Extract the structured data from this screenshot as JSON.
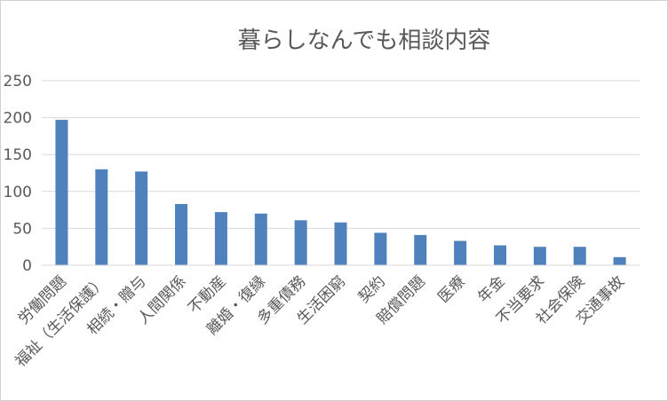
{
  "chart_data": {
    "type": "bar",
    "title": "暮らしなんでも相談内容",
    "xlabel": "",
    "ylabel": "",
    "ylim": [
      0,
      250
    ],
    "yticks": [
      0,
      50,
      100,
      150,
      200,
      250
    ],
    "grid": true,
    "legend": "none",
    "bar_color": "#4f81bd",
    "grid_color": "#d9d9d9",
    "categories": [
      "労働問題",
      "福祉（生活保護）",
      "相続・贈与",
      "人間関係",
      "不動産",
      "離婚・復縁",
      "多重債務",
      "生活困窮",
      "契約",
      "賠償問題",
      "医療",
      "年金",
      "不当要求",
      "社会保険",
      "交通事故"
    ],
    "values": [
      197,
      130,
      127,
      83,
      72,
      70,
      61,
      58,
      44,
      41,
      33,
      27,
      25,
      25,
      11
    ]
  }
}
